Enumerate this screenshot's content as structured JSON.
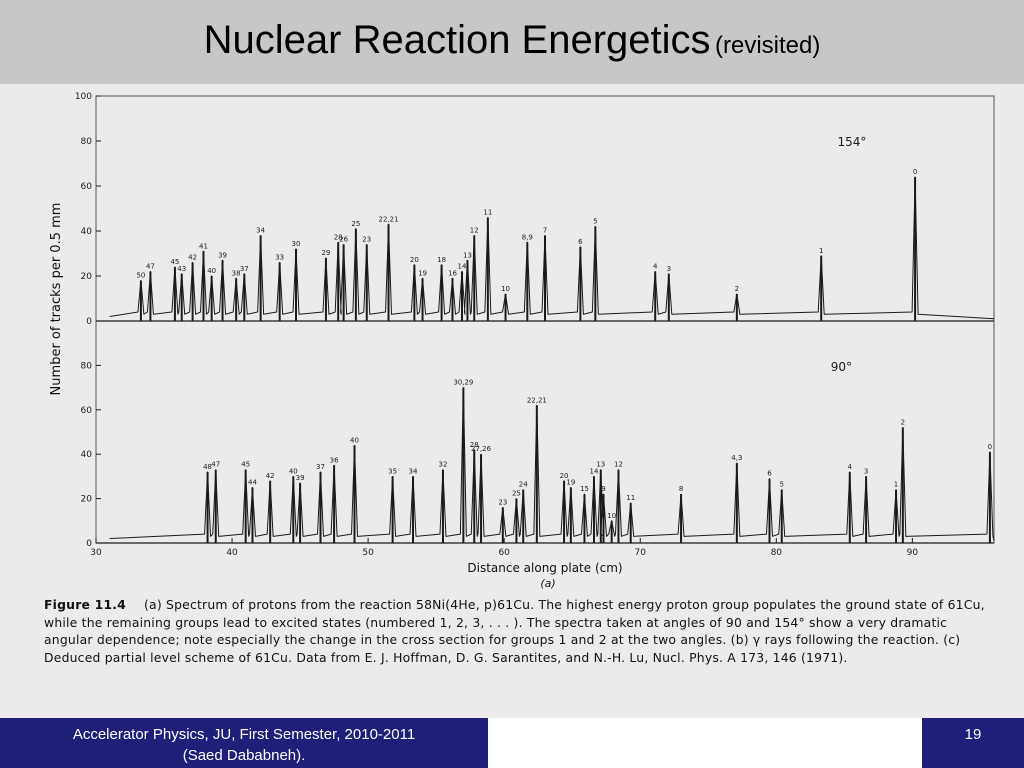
{
  "slide": {
    "title": "Nuclear Reaction Energetics",
    "title_suffix": "(revisited)",
    "footer_left_line1": "Accelerator Physics, JU, First Semester, 2010-2011",
    "footer_left_line2": "(Saed Dababneh).",
    "page_number": "19"
  },
  "figure": {
    "caption_label": "Figure 11.4",
    "caption_text": "(a) Spectrum of protons from the reaction 58Ni(4He, p)61Cu. The highest energy proton group populates the ground state of 61Cu, while the remaining groups lead to excited states (numbered 1, 2, 3, . . . ). The spectra taken at angles of 90 and 154° show a very dramatic angular dependence; note especially the change in the cross section for groups 1 and 2 at the two angles. (b) γ rays following the reaction. (c) Deduced partial level scheme of 61Cu. Data from E. J. Hoffman, D. G. Sarantites, and N.-H. Lu, Nucl. Phys. A 173, 146 (1971).",
    "panel_label": "(a)"
  },
  "colors": {
    "title_bar": "#c7c7c7",
    "footer": "#1f1f7a",
    "figure_bg": "#ecebea",
    "ink": "#1a1a1a"
  },
  "chart_data": [
    {
      "type": "line",
      "panel": "154°",
      "xlabel": "Distance along plate (cm)",
      "ylabel": "Number of tracks per 0.5 mm",
      "xlim": [
        30,
        96
      ],
      "ylim": [
        0,
        100
      ],
      "yticks": [
        "0",
        "20",
        "40",
        "60",
        "80",
        "100"
      ],
      "peaks": [
        {
          "label": "50",
          "x": 33.3,
          "y": 18
        },
        {
          "label": "47",
          "x": 34.0,
          "y": 22
        },
        {
          "label": "45",
          "x": 35.8,
          "y": 24
        },
        {
          "label": "43",
          "x": 36.3,
          "y": 21
        },
        {
          "label": "42",
          "x": 37.1,
          "y": 26
        },
        {
          "label": "41",
          "x": 37.9,
          "y": 31
        },
        {
          "label": "40",
          "x": 38.5,
          "y": 20
        },
        {
          "label": "39",
          "x": 39.3,
          "y": 27
        },
        {
          "label": "38",
          "x": 40.3,
          "y": 19
        },
        {
          "label": "37",
          "x": 40.9,
          "y": 21
        },
        {
          "label": "34",
          "x": 42.1,
          "y": 38
        },
        {
          "label": "33",
          "x": 43.5,
          "y": 26
        },
        {
          "label": "30",
          "x": 44.7,
          "y": 32
        },
        {
          "label": "29",
          "x": 46.9,
          "y": 28
        },
        {
          "label": "28",
          "x": 47.8,
          "y": 35
        },
        {
          "label": "26",
          "x": 48.2,
          "y": 34
        },
        {
          "label": "25",
          "x": 49.1,
          "y": 41
        },
        {
          "label": "23",
          "x": 49.9,
          "y": 34
        },
        {
          "label": "22,21",
          "x": 51.5,
          "y": 43
        },
        {
          "label": "20",
          "x": 53.4,
          "y": 25
        },
        {
          "label": "19",
          "x": 54.0,
          "y": 19
        },
        {
          "label": "18",
          "x": 55.4,
          "y": 25
        },
        {
          "label": "16",
          "x": 56.2,
          "y": 19
        },
        {
          "label": "14",
          "x": 56.9,
          "y": 22
        },
        {
          "label": "13",
          "x": 57.3,
          "y": 27
        },
        {
          "label": "12",
          "x": 57.8,
          "y": 38
        },
        {
          "label": "11",
          "x": 58.8,
          "y": 46
        },
        {
          "label": "10",
          "x": 60.1,
          "y": 12
        },
        {
          "label": "8,9",
          "x": 61.7,
          "y": 35
        },
        {
          "label": "7",
          "x": 63.0,
          "y": 38
        },
        {
          "label": "6",
          "x": 65.6,
          "y": 33
        },
        {
          "label": "5",
          "x": 66.7,
          "y": 42
        },
        {
          "label": "4",
          "x": 71.1,
          "y": 22
        },
        {
          "label": "3",
          "x": 72.1,
          "y": 21
        },
        {
          "label": "2",
          "x": 77.1,
          "y": 12
        },
        {
          "label": "1",
          "x": 83.3,
          "y": 29
        },
        {
          "label": "0",
          "x": 90.2,
          "y": 64
        }
      ]
    },
    {
      "type": "line",
      "panel": "90°",
      "xlabel": "Distance along plate (cm)",
      "ylabel": "Number of tracks per 0.5 mm",
      "xlim": [
        30,
        96
      ],
      "ylim": [
        0,
        100
      ],
      "yticks": [
        "0",
        "20",
        "40",
        "60",
        "80"
      ],
      "xticks": [
        "30",
        "40",
        "50",
        "60",
        "70",
        "80",
        "90"
      ],
      "peaks": [
        {
          "label": "48",
          "x": 38.2,
          "y": 32
        },
        {
          "label": "47",
          "x": 38.8,
          "y": 33
        },
        {
          "label": "45",
          "x": 41.0,
          "y": 33
        },
        {
          "label": "44",
          "x": 41.5,
          "y": 25
        },
        {
          "label": "42",
          "x": 42.8,
          "y": 28
        },
        {
          "label": "40",
          "x": 44.5,
          "y": 30
        },
        {
          "label": "39",
          "x": 45.0,
          "y": 27
        },
        {
          "label": "37",
          "x": 46.5,
          "y": 32
        },
        {
          "label": "36",
          "x": 47.5,
          "y": 35
        },
        {
          "label": "40",
          "x": 49.0,
          "y": 44
        },
        {
          "label": "35",
          "x": 51.8,
          "y": 30
        },
        {
          "label": "34",
          "x": 53.3,
          "y": 30
        },
        {
          "label": "32",
          "x": 55.5,
          "y": 33
        },
        {
          "label": "30,29",
          "x": 57.0,
          "y": 70
        },
        {
          "label": "28",
          "x": 57.8,
          "y": 42
        },
        {
          "label": "27,26",
          "x": 58.3,
          "y": 40
        },
        {
          "label": "22,21",
          "x": 62.4,
          "y": 62
        },
        {
          "label": "25",
          "x": 60.9,
          "y": 20
        },
        {
          "label": "24",
          "x": 61.4,
          "y": 24
        },
        {
          "label": "23",
          "x": 59.9,
          "y": 16
        },
        {
          "label": "20",
          "x": 64.4,
          "y": 28
        },
        {
          "label": "19",
          "x": 64.9,
          "y": 25
        },
        {
          "label": "15",
          "x": 65.9,
          "y": 22
        },
        {
          "label": "14",
          "x": 66.6,
          "y": 30
        },
        {
          "label": "13",
          "x": 67.1,
          "y": 33
        },
        {
          "label": "12",
          "x": 68.4,
          "y": 33
        },
        {
          "label": "11",
          "x": 69.3,
          "y": 18
        },
        {
          "label": "10",
          "x": 67.9,
          "y": 10
        },
        {
          "label": "9",
          "x": 67.3,
          "y": 22
        },
        {
          "label": "8",
          "x": 73.0,
          "y": 22
        },
        {
          "label": "4,3",
          "x": 77.1,
          "y": 36
        },
        {
          "label": "6",
          "x": 79.5,
          "y": 29
        },
        {
          "label": "5",
          "x": 80.4,
          "y": 24
        },
        {
          "label": "4",
          "x": 85.4,
          "y": 32
        },
        {
          "label": "3",
          "x": 86.6,
          "y": 30
        },
        {
          "label": "2",
          "x": 89.3,
          "y": 52
        },
        {
          "label": "1",
          "x": 88.8,
          "y": 24
        },
        {
          "label": "0",
          "x": 95.7,
          "y": 41
        }
      ]
    }
  ]
}
